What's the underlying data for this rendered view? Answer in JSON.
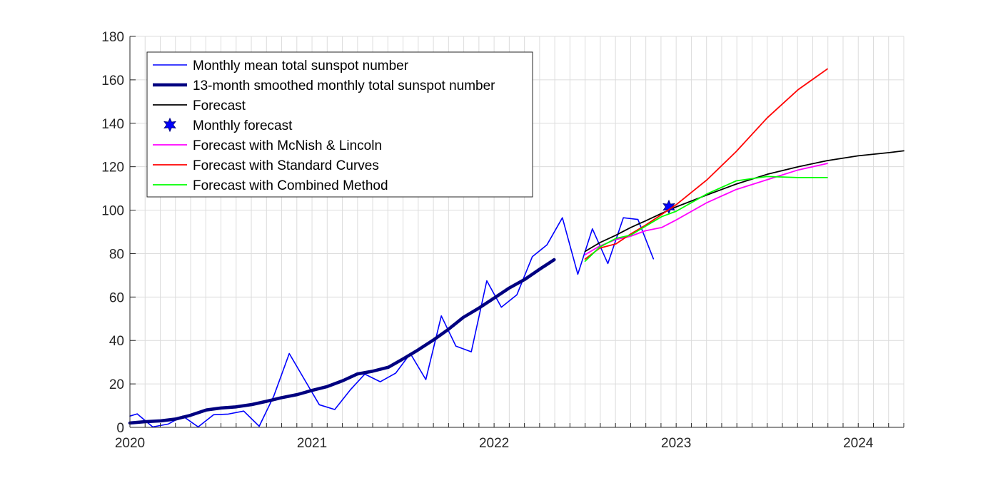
{
  "chart_data": {
    "type": "line",
    "title": "",
    "xlabel": "",
    "ylabel": "",
    "xlim": [
      2020.0,
      2024.25
    ],
    "ylim": [
      0,
      180
    ],
    "grid": true,
    "x_major_ticks": [
      2020,
      2021,
      2022,
      2023,
      2024
    ],
    "x_tick_labels": [
      "2020",
      "2021",
      "2022",
      "2023",
      "2024"
    ],
    "x_minor_tick_step_months": 1,
    "y_ticks": [
      0,
      20,
      40,
      60,
      80,
      100,
      120,
      140,
      160,
      180
    ],
    "y_tick_labels": [
      "0",
      "20",
      "40",
      "60",
      "80",
      "100",
      "120",
      "140",
      "160",
      "180"
    ],
    "legend_position": "top-left",
    "series": [
      {
        "name": "Monthly mean total sunspot number",
        "color": "#0000ff",
        "style": "thin",
        "points": [
          [
            2020.0,
            5.2
          ],
          [
            2020.04,
            6.2
          ],
          [
            2020.125,
            0.2
          ],
          [
            2020.21,
            1.5
          ],
          [
            2020.29,
            5.2
          ],
          [
            2020.375,
            0.2
          ],
          [
            2020.46,
            5.8
          ],
          [
            2020.54,
            6.1
          ],
          [
            2020.625,
            7.5
          ],
          [
            2020.71,
            0.5
          ],
          [
            2020.79,
            14.4
          ],
          [
            2020.875,
            34.0
          ],
          [
            2020.96,
            21.8
          ],
          [
            2021.04,
            10.4
          ],
          [
            2021.125,
            8.2
          ],
          [
            2021.21,
            17.2
          ],
          [
            2021.29,
            24.5
          ],
          [
            2021.375,
            21.0
          ],
          [
            2021.46,
            25.0
          ],
          [
            2021.54,
            34.0
          ],
          [
            2021.625,
            22.0
          ],
          [
            2021.71,
            51.3
          ],
          [
            2021.79,
            37.4
          ],
          [
            2021.875,
            34.8
          ],
          [
            2021.96,
            67.5
          ],
          [
            2022.04,
            55.3
          ],
          [
            2022.125,
            61.0
          ],
          [
            2022.21,
            78.6
          ],
          [
            2022.29,
            84.0
          ],
          [
            2022.375,
            96.5
          ],
          [
            2022.46,
            70.5
          ],
          [
            2022.54,
            91.4
          ],
          [
            2022.625,
            75.4
          ],
          [
            2022.71,
            96.5
          ],
          [
            2022.79,
            95.7
          ],
          [
            2022.875,
            77.6
          ]
        ]
      },
      {
        "name": "13-month smoothed monthly total sunspot number",
        "color": "#000080",
        "style": "thick",
        "points": [
          [
            2020.0,
            2.0
          ],
          [
            2020.08,
            2.6
          ],
          [
            2020.17,
            3.0
          ],
          [
            2020.25,
            3.8
          ],
          [
            2020.33,
            5.5
          ],
          [
            2020.42,
            8.0
          ],
          [
            2020.5,
            8.9
          ],
          [
            2020.58,
            9.4
          ],
          [
            2020.67,
            10.5
          ],
          [
            2020.75,
            12.0
          ],
          [
            2020.83,
            13.6
          ],
          [
            2020.92,
            15.1
          ],
          [
            2021.0,
            17.0
          ],
          [
            2021.08,
            18.7
          ],
          [
            2021.17,
            21.5
          ],
          [
            2021.25,
            24.6
          ],
          [
            2021.33,
            25.8
          ],
          [
            2021.42,
            27.7
          ],
          [
            2021.5,
            31.5
          ],
          [
            2021.58,
            35.5
          ],
          [
            2021.67,
            40.4
          ],
          [
            2021.75,
            45.2
          ],
          [
            2021.83,
            50.6
          ],
          [
            2021.92,
            55.1
          ],
          [
            2022.0,
            59.5
          ],
          [
            2022.08,
            64.0
          ],
          [
            2022.17,
            68.2
          ],
          [
            2022.25,
            72.8
          ],
          [
            2022.33,
            77.2
          ]
        ]
      },
      {
        "name": "Forecast",
        "color": "#000000",
        "style": "medium",
        "points": [
          [
            2022.5,
            81.0
          ],
          [
            2022.58,
            85.0
          ],
          [
            2022.67,
            88.5
          ],
          [
            2022.75,
            92.0
          ],
          [
            2022.83,
            95.0
          ],
          [
            2022.92,
            98.5
          ],
          [
            2023.0,
            101.5
          ],
          [
            2023.17,
            107.0
          ],
          [
            2023.33,
            112.0
          ],
          [
            2023.5,
            116.5
          ],
          [
            2023.67,
            120.0
          ],
          [
            2023.83,
            122.8
          ],
          [
            2024.0,
            125.0
          ],
          [
            2024.17,
            126.5
          ],
          [
            2024.25,
            127.3
          ]
        ]
      },
      {
        "name": "Monthly forecast",
        "color": "#0000ff",
        "style": "star",
        "points": [
          [
            2022.96,
            101.5
          ]
        ]
      },
      {
        "name": "Forecast with McNish & Lincoln",
        "color": "#ff00ff",
        "style": "medium",
        "points": [
          [
            2022.5,
            79.5
          ],
          [
            2022.58,
            83.5
          ],
          [
            2022.67,
            86.5
          ],
          [
            2022.75,
            88.0
          ],
          [
            2022.83,
            90.5
          ],
          [
            2022.92,
            92.0
          ],
          [
            2023.0,
            95.5
          ],
          [
            2023.17,
            103.5
          ],
          [
            2023.33,
            109.5
          ],
          [
            2023.5,
            114.0
          ],
          [
            2023.67,
            118.5
          ],
          [
            2023.83,
            121.5
          ]
        ]
      },
      {
        "name": "Forecast with Standard Curves",
        "color": "#ff0000",
        "style": "medium",
        "points": [
          [
            2022.5,
            77.5
          ],
          [
            2022.58,
            82.5
          ],
          [
            2022.67,
            84.5
          ],
          [
            2022.75,
            89.0
          ],
          [
            2022.83,
            93.0
          ],
          [
            2022.92,
            98.0
          ],
          [
            2023.0,
            102.5
          ],
          [
            2023.17,
            114.0
          ],
          [
            2023.33,
            127.0
          ],
          [
            2023.5,
            142.5
          ],
          [
            2023.67,
            155.5
          ],
          [
            2023.83,
            165.0
          ]
        ]
      },
      {
        "name": "Forecast with Combined Method",
        "color": "#00ff00",
        "style": "medium",
        "points": [
          [
            2022.5,
            76.5
          ],
          [
            2022.58,
            83.0
          ],
          [
            2022.67,
            87.0
          ],
          [
            2022.75,
            88.5
          ],
          [
            2022.83,
            92.5
          ],
          [
            2022.92,
            97.0
          ],
          [
            2023.0,
            99.5
          ],
          [
            2023.17,
            107.5
          ],
          [
            2023.33,
            113.5
          ],
          [
            2023.5,
            115.5
          ],
          [
            2023.67,
            115.0
          ],
          [
            2023.83,
            115.0
          ]
        ]
      }
    ]
  }
}
